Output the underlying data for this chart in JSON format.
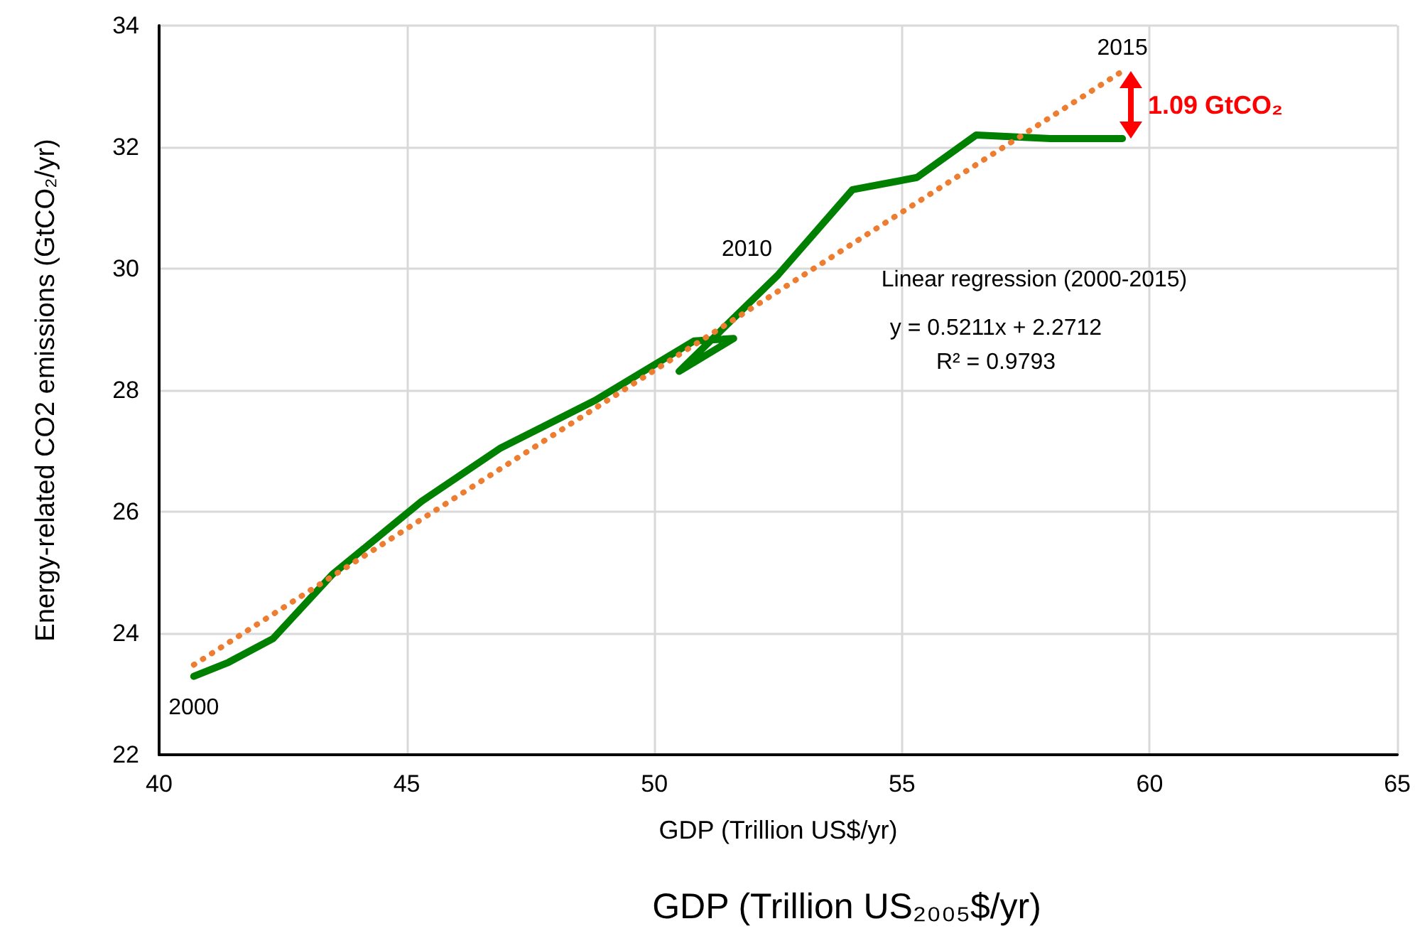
{
  "chart_data": {
    "type": "line",
    "xlabel": "GDP (Trillion US$/yr)",
    "ylabel": "Energy-related CO2 emissions (GtCO₂/yr)",
    "xlim": [
      40,
      65
    ],
    "xticks": [
      40,
      45,
      50,
      55,
      60,
      65
    ],
    "ylim": [
      22,
      34
    ],
    "yticks": [
      22,
      24,
      26,
      28,
      30,
      32,
      34
    ],
    "grid": true,
    "marker": "none",
    "series": [
      {
        "color": "#008000",
        "line_style": "solid",
        "x": [
          40.7,
          41.4,
          42.3,
          43.5,
          45.3,
          46.9,
          48.8,
          50.8,
          51.6,
          50.5,
          52.5,
          54.0,
          55.3,
          56.5,
          58.0,
          59.45
        ],
        "values": [
          23.29,
          23.52,
          23.91,
          24.97,
          26.17,
          27.05,
          27.83,
          28.81,
          28.85,
          28.31,
          29.9,
          31.3,
          31.5,
          32.2,
          32.14,
          32.14
        ]
      },
      {
        "color": "#ed7d31",
        "line_style": "dotted",
        "x": [
          40.7,
          59.45
        ],
        "values": [
          23.48,
          33.25
        ]
      }
    ],
    "annotations": [
      {
        "text": "2000",
        "x": 40.7,
        "y": 23.29
      },
      {
        "text": "2010",
        "x": 52.5,
        "y": 29.9
      },
      {
        "text": "2015",
        "x": 59.45,
        "y": 33.25
      },
      "1.09 GtCO₂",
      "Linear regression (2000-2015)",
      "y = 0.5211x + 2.2712",
      "R² = 0.9793",
      "GDP (Trillion US₂₀₀₅$/yr)"
    ]
  }
}
